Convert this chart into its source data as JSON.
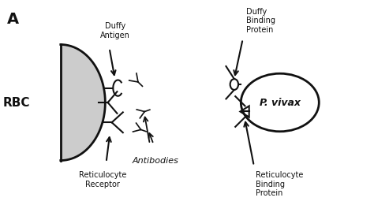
{
  "bg_color": "#f0f0f0",
  "title_label": "A",
  "rbc_label": "RBC",
  "pvivax_label": "P. vivax",
  "duffy_antigen_label": "Duffy\nAntigen",
  "reticulocyte_receptor_label": "Reticulocyte\nReceptor",
  "antibodies_label": "Antibodies",
  "duffy_binding_label": "Duffy\nBinding\nProtein",
  "reticulocyte_binding_label": "Reticulocyte\nBinding\nProtein",
  "text_color": "#111111",
  "line_color": "#111111",
  "rbc_fill": "#cccccc",
  "pvivax_fill": "#ffffff",
  "figsize": [
    4.74,
    2.6
  ],
  "dpi": 100
}
